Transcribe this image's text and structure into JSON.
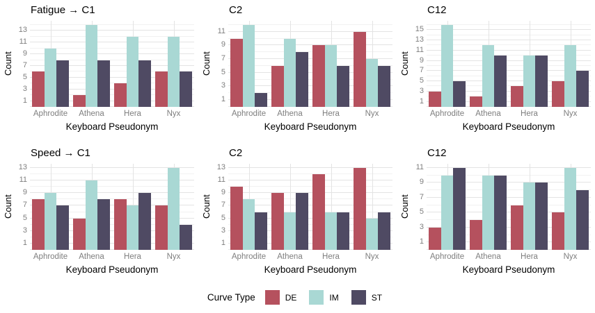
{
  "colors": {
    "DE": "#b5515e",
    "IM": "#a9d8d4",
    "ST": "#4f4a63",
    "grid_major": "#e3e3e3",
    "grid_minor": "#f1f1f1",
    "tick_label": "#7e7e7e",
    "text": "#000000",
    "background": "#ffffff"
  },
  "axis": {
    "x_label": "Keyboard Pseudonym",
    "y_label": "Count"
  },
  "legend": {
    "title": "Curve Type",
    "position": "bottom",
    "entries": [
      {
        "label": "DE",
        "color": "#b5515e"
      },
      {
        "label": "IM",
        "color": "#a9d8d4"
      },
      {
        "label": "ST",
        "color": "#4f4a63"
      }
    ]
  },
  "chart_data": [
    {
      "type": "bar",
      "title": "Fatigue → C1",
      "xlabel": "Keyboard Pseudonym",
      "ylabel": "Count",
      "categories": [
        "Aphrodite",
        "Athena",
        "Hera",
        "Nyx"
      ],
      "series": [
        {
          "name": "DE",
          "values": [
            6,
            2,
            4,
            6
          ]
        },
        {
          "name": "IM",
          "values": [
            10,
            14,
            12,
            12
          ]
        },
        {
          "name": "ST",
          "values": [
            8,
            8,
            8,
            6
          ]
        }
      ],
      "yticks": [
        1,
        3,
        5,
        7,
        9,
        11,
        13
      ],
      "ylim": [
        0,
        14.7
      ],
      "grid": true,
      "legend_position": "bottom"
    },
    {
      "type": "bar",
      "title": "C2",
      "xlabel": "Keyboard Pseudonym",
      "ylabel": "Count",
      "categories": [
        "Aphrodite",
        "Athena",
        "Hera",
        "Nyx"
      ],
      "series": [
        {
          "name": "DE",
          "values": [
            10,
            6,
            9,
            11
          ]
        },
        {
          "name": "IM",
          "values": [
            12,
            10,
            9,
            7
          ]
        },
        {
          "name": "ST",
          "values": [
            2,
            8,
            6,
            6
          ]
        }
      ],
      "yticks": [
        1,
        3,
        5,
        7,
        9,
        11
      ],
      "ylim": [
        0,
        12.6
      ],
      "grid": true,
      "legend_position": "bottom"
    },
    {
      "type": "bar",
      "title": "C12",
      "xlabel": "Keyboard Pseudonym",
      "ylabel": "Count",
      "categories": [
        "Aphrodite",
        "Athena",
        "Hera",
        "Nyx"
      ],
      "series": [
        {
          "name": "DE",
          "values": [
            3,
            2,
            4,
            5
          ]
        },
        {
          "name": "IM",
          "values": [
            16,
            12,
            10,
            12
          ]
        },
        {
          "name": "ST",
          "values": [
            5,
            10,
            10,
            7
          ]
        }
      ],
      "yticks": [
        1,
        3,
        5,
        7,
        9,
        11,
        13,
        15
      ],
      "ylim": [
        0,
        16.8
      ],
      "grid": true,
      "legend_position": "bottom"
    },
    {
      "type": "bar",
      "title": "Speed → C1",
      "xlabel": "Keyboard Pseudonym",
      "ylabel": "Count",
      "categories": [
        "Aphrodite",
        "Athena",
        "Hera",
        "Nyx"
      ],
      "series": [
        {
          "name": "DE",
          "values": [
            8,
            5,
            8,
            7
          ]
        },
        {
          "name": "IM",
          "values": [
            9,
            11,
            7,
            13
          ]
        },
        {
          "name": "ST",
          "values": [
            7,
            8,
            9,
            4
          ]
        }
      ],
      "yticks": [
        1,
        3,
        5,
        7,
        9,
        11,
        13
      ],
      "ylim": [
        0,
        13.65
      ],
      "grid": true,
      "legend_position": "bottom"
    },
    {
      "type": "bar",
      "title": "C2",
      "xlabel": "Keyboard Pseudonym",
      "ylabel": "Count",
      "categories": [
        "Aphrodite",
        "Athena",
        "Hera",
        "Nyx"
      ],
      "series": [
        {
          "name": "DE",
          "values": [
            10,
            9,
            12,
            13
          ]
        },
        {
          "name": "IM",
          "values": [
            8,
            6,
            6,
            5
          ]
        },
        {
          "name": "ST",
          "values": [
            6,
            9,
            6,
            6
          ]
        }
      ],
      "yticks": [
        1,
        3,
        5,
        7,
        9,
        11,
        13
      ],
      "ylim": [
        0,
        13.65
      ],
      "grid": true,
      "legend_position": "bottom"
    },
    {
      "type": "bar",
      "title": "C12",
      "xlabel": "Keyboard Pseudonym",
      "ylabel": "Count",
      "categories": [
        "Aphrodite",
        "Athena",
        "Hera",
        "Nyx"
      ],
      "series": [
        {
          "name": "DE",
          "values": [
            3,
            4,
            6,
            5
          ]
        },
        {
          "name": "IM",
          "values": [
            10,
            10,
            9,
            11
          ]
        },
        {
          "name": "ST",
          "values": [
            11,
            10,
            9,
            8
          ]
        }
      ],
      "yticks": [
        1,
        3,
        5,
        7,
        9,
        11
      ],
      "ylim": [
        0,
        11.55
      ],
      "grid": true,
      "legend_position": "bottom"
    }
  ]
}
